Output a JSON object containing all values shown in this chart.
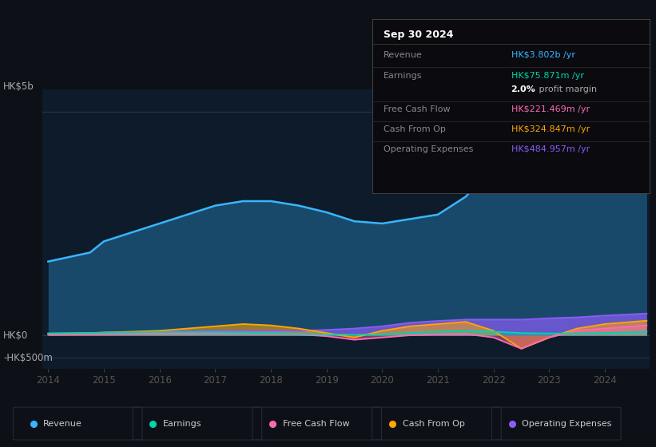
{
  "bg_color": "#0d1117",
  "plot_bg_color": "#0d1b2a",
  "years": [
    2014,
    2014.75,
    2015,
    2016,
    2017,
    2017.5,
    2018,
    2018.5,
    2019,
    2019.5,
    2020,
    2020.5,
    2021,
    2021.5,
    2022,
    2022.5,
    2023,
    2023.5,
    2024,
    2024.75
  ],
  "revenue": [
    1.65,
    1.85,
    2.1,
    2.5,
    2.9,
    3.0,
    3.0,
    2.9,
    2.75,
    2.55,
    2.5,
    2.6,
    2.7,
    3.1,
    3.8,
    4.35,
    4.5,
    4.1,
    3.7,
    3.802
  ],
  "earnings": [
    0.04,
    0.05,
    0.06,
    0.07,
    0.07,
    0.06,
    0.05,
    0.03,
    0.02,
    0.01,
    0.02,
    0.05,
    0.08,
    0.1,
    0.08,
    0.05,
    0.04,
    0.04,
    0.05,
    0.076
  ],
  "free_cash_flow": [
    0.01,
    0.02,
    0.03,
    0.04,
    0.05,
    0.05,
    0.04,
    0.02,
    -0.02,
    -0.1,
    -0.05,
    0.0,
    0.02,
    0.03,
    -0.05,
    -0.3,
    -0.05,
    0.1,
    0.15,
    0.221
  ],
  "cash_from_op": [
    0.04,
    0.05,
    0.06,
    0.1,
    0.2,
    0.25,
    0.22,
    0.15,
    0.05,
    -0.05,
    0.1,
    0.2,
    0.25,
    0.3,
    0.1,
    -0.3,
    -0.05,
    0.15,
    0.25,
    0.325
  ],
  "operating_expenses": [
    0.03,
    0.04,
    0.06,
    0.08,
    0.1,
    0.1,
    0.1,
    0.1,
    0.12,
    0.15,
    0.2,
    0.28,
    0.32,
    0.35,
    0.35,
    0.35,
    0.38,
    0.4,
    0.44,
    0.485
  ],
  "revenue_color": "#38b6ff",
  "earnings_color": "#00d4aa",
  "free_cash_flow_color": "#ff69b4",
  "cash_from_op_color": "#ffa500",
  "operating_expenses_color": "#8b5cf6",
  "ylabel_top": "HK$5b",
  "ylabel_zero": "HK$0",
  "ylabel_neg": "-HK$500m",
  "ylim_top": 5.5,
  "ylim_bottom": -0.75,
  "y_zero": 0.0,
  "y_top_line": 5.0,
  "y_neg_line": -0.5,
  "tooltip_title": "Sep 30 2024",
  "tooltip_revenue": "HK$3.802b",
  "tooltip_earnings": "HK$75.871m",
  "tooltip_profit_margin": "2.0%",
  "tooltip_fcf": "HK$221.469m",
  "tooltip_cashop": "HK$324.847m",
  "tooltip_opex": "HK$484.957m",
  "x_ticks": [
    2014,
    2015,
    2016,
    2017,
    2018,
    2019,
    2020,
    2021,
    2022,
    2023,
    2024
  ],
  "legend_items": [
    "Revenue",
    "Earnings",
    "Free Cash Flow",
    "Cash From Op",
    "Operating Expenses"
  ],
  "legend_colors": [
    "#38b6ff",
    "#00d4aa",
    "#ff69b4",
    "#ffa500",
    "#8b5cf6"
  ]
}
